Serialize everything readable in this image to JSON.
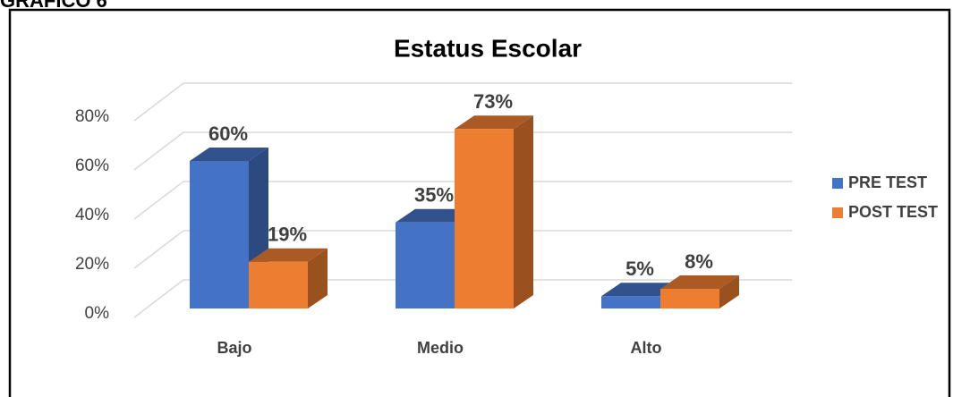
{
  "caption": "GRAFICO 6",
  "chart_data": {
    "type": "bar3d",
    "title": "Estatus Escolar",
    "categories": [
      "Bajo",
      "Medio",
      "Alto"
    ],
    "series": [
      {
        "name": "PRE TEST",
        "color": "#4472c4",
        "values": [
          60,
          35,
          5
        ],
        "value_labels": [
          "60%",
          "35%",
          "5%"
        ]
      },
      {
        "name": "POST TEST",
        "color": "#ed7d31",
        "values": [
          19,
          73,
          8
        ],
        "value_labels": [
          "19%",
          "73%",
          "8%"
        ]
      }
    ],
    "ylim": [
      0,
      80
    ],
    "yticks": [
      {
        "value": 0,
        "label": "0%"
      },
      {
        "value": 20,
        "label": "20%"
      },
      {
        "value": 40,
        "label": "40%"
      },
      {
        "value": 60,
        "label": "60%"
      },
      {
        "value": 80,
        "label": "80%"
      }
    ],
    "grid": true,
    "legend": "right"
  }
}
